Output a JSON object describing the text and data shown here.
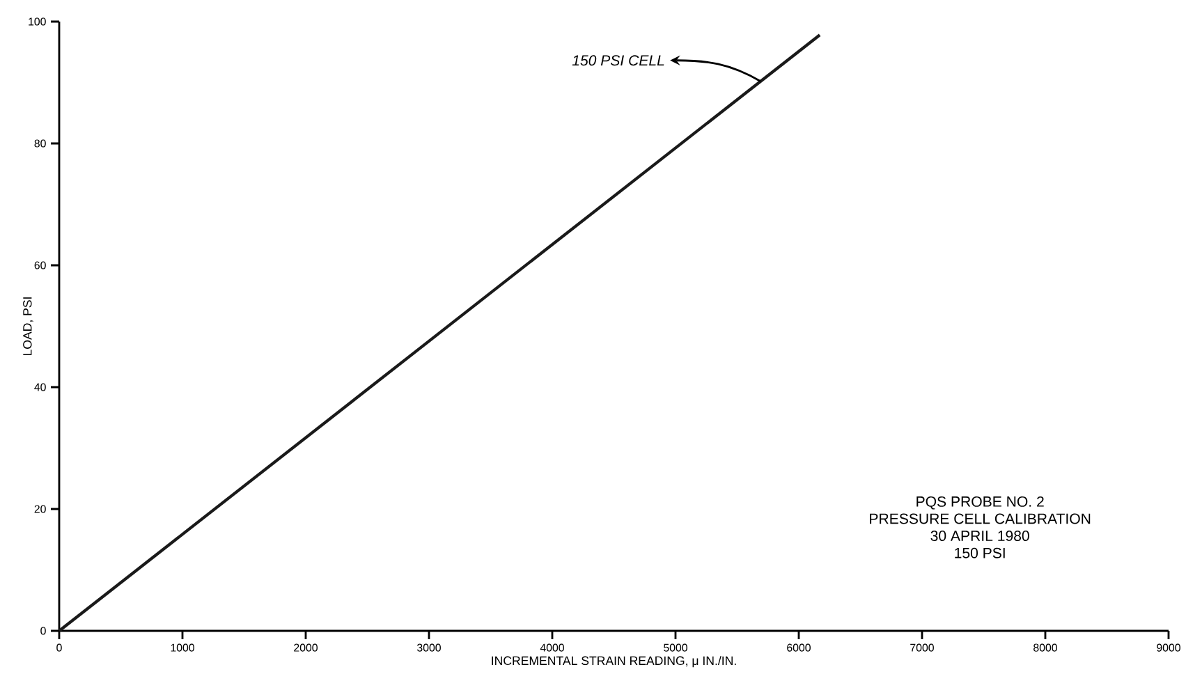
{
  "chart_data": {
    "type": "line",
    "xlabel": "INCREMENTAL STRAIN READING, μ IN./IN.",
    "ylabel": "LOAD, PSI",
    "x": [
      0,
      6170
    ],
    "series": [
      {
        "color": "#1a1a1a",
        "values": [
          0,
          97.8
        ]
      }
    ],
    "xlim": [
      0,
      9000
    ],
    "ylim": [
      0,
      100
    ],
    "xticks": [
      0,
      1000,
      2000,
      3000,
      4000,
      5000,
      6000,
      7000,
      8000,
      9000
    ],
    "yticks": [
      0,
      20,
      40,
      60,
      80,
      100
    ],
    "grid": false,
    "marker": "none",
    "line_style": "solid",
    "annotations": [
      {
        "text": "150 PSI CELL",
        "x": 5690,
        "y": 90.2
      },
      "PQS PROBE NO. 2",
      "PRESSURE CELL CALIBRATION",
      "30 APRIL 1980",
      "150 PSI"
    ]
  }
}
